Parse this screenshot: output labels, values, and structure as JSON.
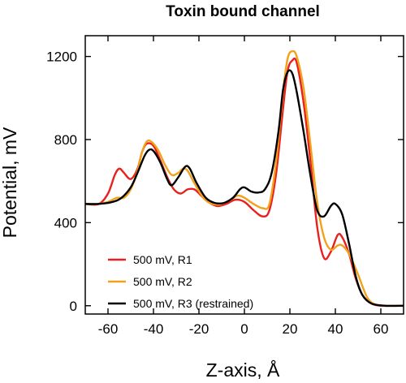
{
  "chart_data": {
    "type": "line",
    "title": "Toxin bound channel",
    "xlabel": "Z-axis, Å",
    "ylabel": "Potential, mV",
    "xlim": [
      -70,
      70
    ],
    "ylim": [
      -40,
      1300
    ],
    "x_ticks": [
      -60,
      -40,
      -20,
      0,
      20,
      40,
      60
    ],
    "y_ticks": [
      0,
      400,
      800,
      1200
    ],
    "grid": false,
    "legend_position": "bottom-left",
    "series": [
      {
        "name": "500 mV, R1",
        "color": "#e8201e",
        "points": [
          [
            -70,
            490
          ],
          [
            -64,
            490
          ],
          [
            -60,
            540
          ],
          [
            -57,
            630
          ],
          [
            -55,
            660
          ],
          [
            -53,
            640
          ],
          [
            -50,
            610
          ],
          [
            -47,
            660
          ],
          [
            -45,
            740
          ],
          [
            -43,
            780
          ],
          [
            -40,
            770
          ],
          [
            -37,
            700
          ],
          [
            -34,
            620
          ],
          [
            -31,
            560
          ],
          [
            -28,
            540
          ],
          [
            -25,
            560
          ],
          [
            -22,
            560
          ],
          [
            -19,
            530
          ],
          [
            -16,
            500
          ],
          [
            -12,
            480
          ],
          [
            -8,
            490
          ],
          [
            -4,
            510
          ],
          [
            0,
            500
          ],
          [
            4,
            460
          ],
          [
            8,
            430
          ],
          [
            11,
            460
          ],
          [
            14,
            640
          ],
          [
            17,
            950
          ],
          [
            19,
            1130
          ],
          [
            21,
            1180
          ],
          [
            23,
            1170
          ],
          [
            26,
            980
          ],
          [
            29,
            700
          ],
          [
            32,
            380
          ],
          [
            35,
            230
          ],
          [
            38,
            260
          ],
          [
            41,
            340
          ],
          [
            43,
            330
          ],
          [
            46,
            250
          ],
          [
            49,
            130
          ],
          [
            52,
            50
          ],
          [
            56,
            10
          ],
          [
            60,
            0
          ],
          [
            64,
            0
          ],
          [
            70,
            0
          ]
        ]
      },
      {
        "name": "500 mV, R2",
        "color": "#f2a21a",
        "points": [
          [
            -70,
            490
          ],
          [
            -64,
            490
          ],
          [
            -60,
            500
          ],
          [
            -56,
            520
          ],
          [
            -53,
            520
          ],
          [
            -50,
            560
          ],
          [
            -47,
            650
          ],
          [
            -45,
            740
          ],
          [
            -43,
            790
          ],
          [
            -41,
            790
          ],
          [
            -38,
            750
          ],
          [
            -35,
            680
          ],
          [
            -32,
            630
          ],
          [
            -29,
            640
          ],
          [
            -27,
            660
          ],
          [
            -25,
            650
          ],
          [
            -22,
            590
          ],
          [
            -18,
            520
          ],
          [
            -14,
            490
          ],
          [
            -10,
            490
          ],
          [
            -6,
            510
          ],
          [
            -3,
            530
          ],
          [
            0,
            520
          ],
          [
            4,
            490
          ],
          [
            8,
            470
          ],
          [
            11,
            490
          ],
          [
            14,
            700
          ],
          [
            17,
            1030
          ],
          [
            19,
            1190
          ],
          [
            21,
            1225
          ],
          [
            23,
            1200
          ],
          [
            26,
            1050
          ],
          [
            29,
            780
          ],
          [
            32,
            500
          ],
          [
            35,
            330
          ],
          [
            38,
            270
          ],
          [
            41,
            290
          ],
          [
            43,
            290
          ],
          [
            46,
            250
          ],
          [
            50,
            150
          ],
          [
            54,
            40
          ],
          [
            58,
            5
          ],
          [
            64,
            0
          ],
          [
            70,
            0
          ]
        ]
      },
      {
        "name": "500 mV, R3 (restrained)",
        "color": "#000000",
        "points": [
          [
            -70,
            490
          ],
          [
            -64,
            490
          ],
          [
            -58,
            500
          ],
          [
            -54,
            520
          ],
          [
            -50,
            570
          ],
          [
            -47,
            640
          ],
          [
            -44,
            720
          ],
          [
            -42,
            750
          ],
          [
            -40,
            745
          ],
          [
            -37,
            690
          ],
          [
            -34,
            610
          ],
          [
            -32,
            580
          ],
          [
            -29,
            620
          ],
          [
            -26,
            670
          ],
          [
            -24,
            660
          ],
          [
            -21,
            590
          ],
          [
            -17,
            520
          ],
          [
            -13,
            495
          ],
          [
            -9,
            495
          ],
          [
            -5,
            520
          ],
          [
            -2,
            560
          ],
          [
            0,
            570
          ],
          [
            3,
            550
          ],
          [
            6,
            545
          ],
          [
            9,
            560
          ],
          [
            12,
            640
          ],
          [
            15,
            840
          ],
          [
            17,
            1040
          ],
          [
            19,
            1125
          ],
          [
            21,
            1120
          ],
          [
            23,
            1030
          ],
          [
            26,
            840
          ],
          [
            29,
            630
          ],
          [
            32,
            460
          ],
          [
            35,
            430
          ],
          [
            38,
            480
          ],
          [
            40,
            490
          ],
          [
            43,
            440
          ],
          [
            46,
            300
          ],
          [
            49,
            140
          ],
          [
            52,
            50
          ],
          [
            56,
            10
          ],
          [
            62,
            0
          ],
          [
            70,
            0
          ]
        ]
      }
    ]
  }
}
